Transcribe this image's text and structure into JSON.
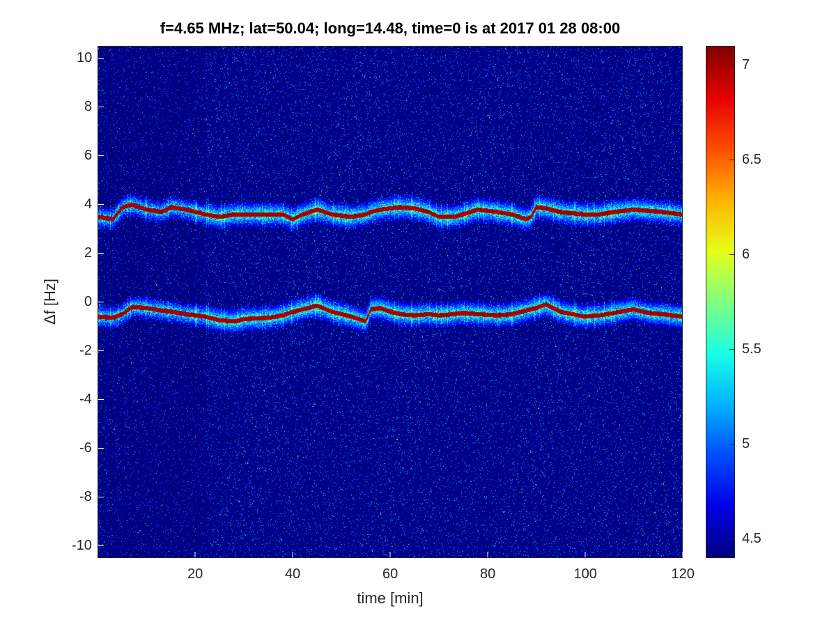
{
  "chart_data": {
    "type": "heatmap",
    "title": "f=4.65 MHz;  lat=50.04; long=14.48, time=0 is at 2017 01 28 08:00",
    "xlabel": "time [min]",
    "ylabel": "Δf [Hz]",
    "xlim": [
      0,
      120
    ],
    "ylim": [
      -10.5,
      10.5
    ],
    "x_ticks": [
      20,
      40,
      60,
      80,
      100,
      120
    ],
    "y_ticks": [
      10,
      8,
      6,
      4,
      2,
      0,
      -2,
      -4,
      -6,
      -8,
      -10
    ],
    "colorbar": {
      "colormap": "jet",
      "range": [
        4.4,
        7.1
      ],
      "ticks": [
        4.5,
        5,
        5.5,
        6,
        6.5,
        7
      ]
    },
    "series": [
      {
        "x": [
          0,
          3,
          5,
          7,
          10,
          13,
          15,
          18,
          22,
          25,
          28,
          30,
          35,
          38,
          40,
          42,
          45,
          48,
          52,
          55,
          56,
          58,
          60,
          62,
          65,
          68,
          70,
          73,
          75,
          78,
          82,
          85,
          88,
          89,
          90,
          92,
          95,
          100,
          103,
          106,
          110,
          113,
          116,
          120
        ],
        "y": [
          3.5,
          3.4,
          3.9,
          4.0,
          3.8,
          3.7,
          3.9,
          3.8,
          3.6,
          3.5,
          3.6,
          3.6,
          3.6,
          3.6,
          3.4,
          3.6,
          3.8,
          3.6,
          3.5,
          3.6,
          3.7,
          3.8,
          3.85,
          3.9,
          3.85,
          3.7,
          3.5,
          3.5,
          3.6,
          3.8,
          3.7,
          3.6,
          3.4,
          3.5,
          3.9,
          3.85,
          3.7,
          3.6,
          3.6,
          3.7,
          3.8,
          3.75,
          3.7,
          3.6
        ]
      },
      {
        "x": [
          0,
          3,
          5,
          7,
          10,
          13,
          15,
          18,
          22,
          25,
          28,
          30,
          35,
          38,
          40,
          42,
          45,
          48,
          52,
          55,
          56,
          58,
          60,
          62,
          65,
          68,
          70,
          73,
          75,
          78,
          82,
          85,
          88,
          89,
          90,
          92,
          95,
          100,
          103,
          106,
          110,
          113,
          116,
          120
        ],
        "y": [
          -0.6,
          -0.65,
          -0.5,
          -0.2,
          -0.25,
          -0.35,
          -0.4,
          -0.5,
          -0.6,
          -0.75,
          -0.8,
          -0.7,
          -0.65,
          -0.55,
          -0.4,
          -0.3,
          -0.15,
          -0.4,
          -0.6,
          -0.8,
          -0.3,
          -0.25,
          -0.4,
          -0.5,
          -0.55,
          -0.5,
          -0.55,
          -0.5,
          -0.45,
          -0.5,
          -0.55,
          -0.5,
          -0.35,
          -0.3,
          -0.25,
          -0.1,
          -0.4,
          -0.6,
          -0.55,
          -0.45,
          -0.3,
          -0.45,
          -0.5,
          -0.6
        ]
      }
    ]
  }
}
